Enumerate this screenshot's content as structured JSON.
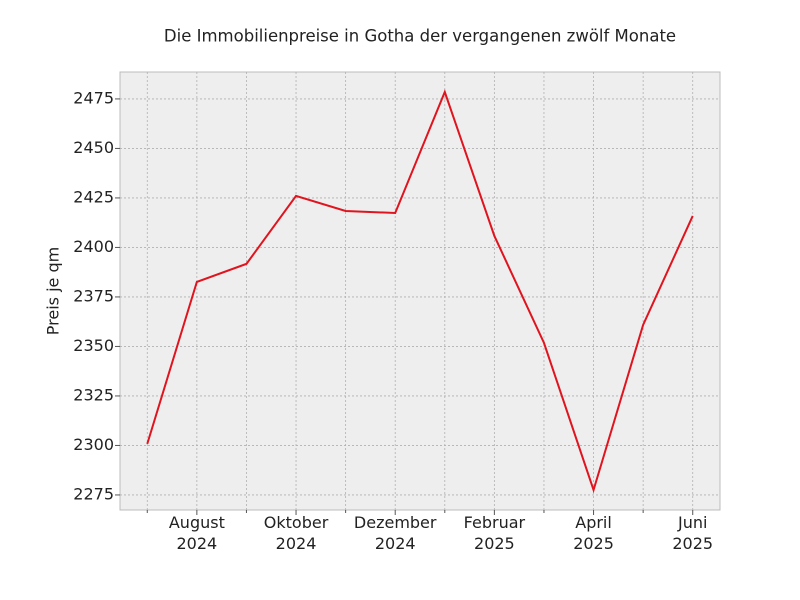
{
  "chart_data": {
    "type": "line",
    "title": "Die Immobilienpreise in Gotha der vergangenen zwölf Monate",
    "y_label": "Preis je qm",
    "categories": [
      null,
      "August\n2024",
      null,
      "Oktober\n2024",
      null,
      "Dezember\n2024",
      null,
      "Februar\n2025",
      null,
      "April\n2025",
      null,
      "Juni\n2025"
    ],
    "series": [
      {
        "name": "Preis je qm",
        "color": "#e0141e",
        "values": [
          2300.8,
          2382.6,
          2391.7,
          2426,
          2418.4,
          2417.4,
          2478.5,
          2405.8,
          2351.8,
          2277.5,
          2360.9,
          2415.9
        ]
      }
    ],
    "ylim": [
      2267.4,
      2488.6
    ],
    "yticks": [
      2275,
      2300,
      2325,
      2350,
      2375,
      2400,
      2425,
      2450,
      2475
    ],
    "grid": true
  }
}
